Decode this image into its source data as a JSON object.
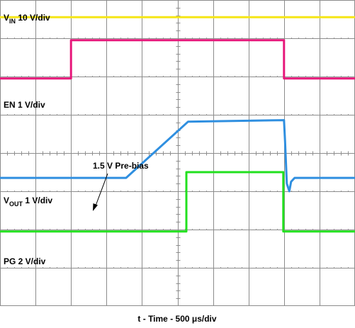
{
  "chart_data": {
    "type": "line",
    "xlabel": "t - Time - 500 μs/div",
    "x_divisions": 10,
    "y_divisions": 8,
    "grid": true,
    "annotation": "1.5 V Pre-bias",
    "series": [
      {
        "name": "VIN",
        "label_main": "V",
        "label_sub": "IN",
        "label_rest": " 10 V/div",
        "color": "#f5e617",
        "points": [
          [
            0,
            7.55
          ],
          [
            10,
            7.55
          ]
        ]
      },
      {
        "name": "EN 1 V/div",
        "label_main": "EN 1 V/div",
        "label_sub": "",
        "label_rest": "",
        "color": "#e6177a",
        "points": [
          [
            0,
            5.95
          ],
          [
            2,
            5.95
          ],
          [
            2,
            6.95
          ],
          [
            8,
            6.95
          ],
          [
            8,
            5.95
          ],
          [
            10,
            5.95
          ]
        ]
      },
      {
        "name": "VOUT",
        "label_main": "V",
        "label_sub": "OUT",
        "label_rest": " 1 V/div",
        "color": "#2f8fe0",
        "points": [
          [
            0,
            3.35
          ],
          [
            3.55,
            3.35
          ],
          [
            5.3,
            4.82
          ],
          [
            8.0,
            4.86
          ],
          [
            8.03,
            4.3
          ],
          [
            8.08,
            3.2
          ],
          [
            8.15,
            3.0
          ],
          [
            8.2,
            3.25
          ],
          [
            8.3,
            3.35
          ],
          [
            10,
            3.35
          ]
        ]
      },
      {
        "name": "PG 2 V/div",
        "label_main": "PG 2 V/div",
        "label_sub": "",
        "label_rest": "",
        "color": "#22e01f",
        "points": [
          [
            0,
            1.95
          ],
          [
            5.25,
            1.95
          ],
          [
            5.25,
            3.5
          ],
          [
            7.98,
            3.5
          ],
          [
            7.98,
            1.95
          ],
          [
            10,
            1.95
          ]
        ]
      }
    ]
  }
}
